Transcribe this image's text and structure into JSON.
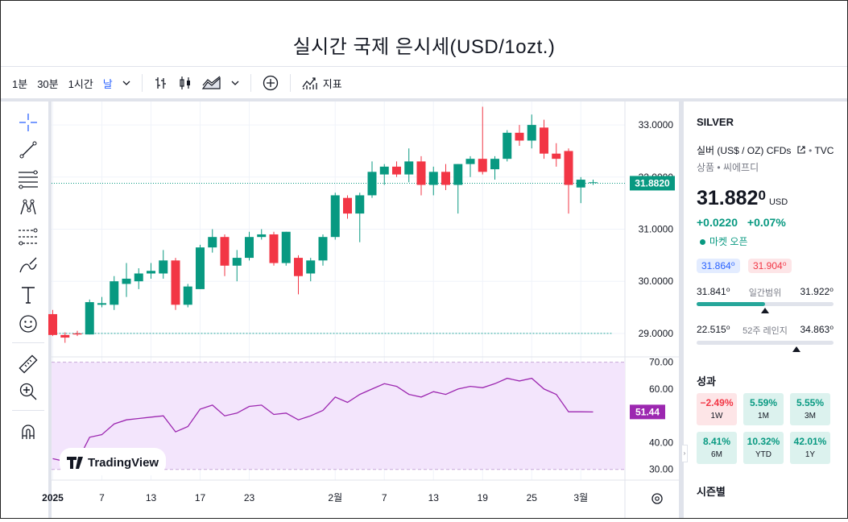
{
  "page": {
    "title": "실시간 국제 은시세(USD/1ozt.)"
  },
  "toolbar": {
    "intervals": [
      "1분",
      "30분",
      "1시간",
      "날"
    ],
    "indicators_label": "지표"
  },
  "left_tools": [
    "crosshair-icon",
    "trend-line-icon",
    "fib-retracement-icon",
    "pattern-icon",
    "long-position-icon",
    "brush-icon",
    "text-icon",
    "emoji-icon",
    "ruler-icon",
    "zoom-in-icon",
    "magnet-icon"
  ],
  "panel": {
    "symbol": "SILVER",
    "description": "실버 (US$ / OZ) CFDs",
    "source": "TVC",
    "category": "상품 • 씨에프디",
    "price_main": "31.882",
    "price_frac": "0",
    "currency": "USD",
    "change": "+0.0220",
    "change_pct": "+0.07%",
    "market_status": "마켓 오픈",
    "bid": "31.864⁰",
    "ask": "31.904⁰",
    "day_low": "31.841⁰",
    "day_range_label": "일간범위",
    "day_high": "31.922⁰",
    "day_range_position": 0.5,
    "year_low": "22.515⁰",
    "year_range_label": "52주 레인지",
    "year_high": "34.863⁰",
    "year_range_position": 0.73,
    "performance_title": "성과",
    "performance": [
      {
        "value": "−2.49%",
        "period": "1W",
        "sign": "neg"
      },
      {
        "value": "5.59%",
        "period": "1M",
        "sign": "pos"
      },
      {
        "value": "5.55%",
        "period": "3M",
        "sign": "pos"
      },
      {
        "value": "8.41%",
        "period": "6M",
        "sign": "pos"
      },
      {
        "value": "10.32%",
        "period": "YTD",
        "sign": "pos"
      },
      {
        "value": "42.01%",
        "period": "1Y",
        "sign": "pos"
      }
    ],
    "seasonals_title": "시즌별"
  },
  "colors": {
    "up": "#089981",
    "down": "#f23645",
    "rsi": "#9c27b0",
    "rsi_band": "#f3e5fc",
    "accent": "#2962ff"
  },
  "watermark": "TradingView",
  "chart_data": {
    "type": "candlestick",
    "last_price_label": "31.8820",
    "last_price": 31.882,
    "baseline": 29.0,
    "ylim": [
      28.55,
      33.45
    ],
    "yticks": [
      {
        "v": 33,
        "label": "33.0000"
      },
      {
        "v": 32,
        "label": "32.0000"
      },
      {
        "v": 31,
        "label": "31.0000"
      },
      {
        "v": 30,
        "label": "30.0000"
      },
      {
        "v": 29,
        "label": "29.0000"
      }
    ],
    "xticks": [
      {
        "i": 0,
        "label": "2025"
      },
      {
        "i": 4,
        "label": "7"
      },
      {
        "i": 8,
        "label": "13"
      },
      {
        "i": 12,
        "label": "17"
      },
      {
        "i": 16,
        "label": "23"
      },
      {
        "i": 23,
        "label": "2월"
      },
      {
        "i": 27,
        "label": "7"
      },
      {
        "i": 31,
        "label": "13"
      },
      {
        "i": 35,
        "label": "19"
      },
      {
        "i": 39,
        "label": "25"
      },
      {
        "i": 43,
        "label": "3월"
      }
    ],
    "candles": [
      [
        29.37,
        29.45,
        28.95,
        28.97
      ],
      [
        28.97,
        29.02,
        28.82,
        28.92
      ],
      [
        29.0,
        29.05,
        28.95,
        28.98
      ],
      [
        28.98,
        29.65,
        28.98,
        29.6
      ],
      [
        29.55,
        29.7,
        29.5,
        29.58
      ],
      [
        29.55,
        30.1,
        29.45,
        30.0
      ],
      [
        29.95,
        30.35,
        29.7,
        30.05
      ],
      [
        30.0,
        30.25,
        29.85,
        30.15
      ],
      [
        30.15,
        30.35,
        30.05,
        30.2
      ],
      [
        30.15,
        30.6,
        30.05,
        30.4
      ],
      [
        30.4,
        30.45,
        29.45,
        29.55
      ],
      [
        29.55,
        29.95,
        29.5,
        29.9
      ],
      [
        29.85,
        30.7,
        29.85,
        30.65
      ],
      [
        30.65,
        31.0,
        30.55,
        30.85
      ],
      [
        30.85,
        30.9,
        30.1,
        30.3
      ],
      [
        30.3,
        30.6,
        30.0,
        30.45
      ],
      [
        30.45,
        30.95,
        30.4,
        30.85
      ],
      [
        30.85,
        31.0,
        30.8,
        30.9
      ],
      [
        30.9,
        30.95,
        30.3,
        30.35
      ],
      [
        30.35,
        30.95,
        30.3,
        30.95
      ],
      [
        30.45,
        30.5,
        29.75,
        30.1
      ],
      [
        30.15,
        30.45,
        30.0,
        30.4
      ],
      [
        30.4,
        30.9,
        30.3,
        30.85
      ],
      [
        30.85,
        31.7,
        30.8,
        31.65
      ],
      [
        31.6,
        31.65,
        31.2,
        31.3
      ],
      [
        31.3,
        31.7,
        30.75,
        31.65
      ],
      [
        31.65,
        32.3,
        31.6,
        32.1
      ],
      [
        32.05,
        32.25,
        31.85,
        32.2
      ],
      [
        32.2,
        32.3,
        32.0,
        32.05
      ],
      [
        32.05,
        32.55,
        31.9,
        32.3
      ],
      [
        32.3,
        32.4,
        31.65,
        31.85
      ],
      [
        31.85,
        32.2,
        31.65,
        32.1
      ],
      [
        32.1,
        32.25,
        31.75,
        31.85
      ],
      [
        31.85,
        32.25,
        31.3,
        32.25
      ],
      [
        32.25,
        32.4,
        32.0,
        32.35
      ],
      [
        32.35,
        33.35,
        32.05,
        32.1
      ],
      [
        32.15,
        32.4,
        31.95,
        32.35
      ],
      [
        32.35,
        32.9,
        32.3,
        32.85
      ],
      [
        32.85,
        33.0,
        32.6,
        32.7
      ],
      [
        32.7,
        33.2,
        32.55,
        33.0
      ],
      [
        32.95,
        33.1,
        32.35,
        32.45
      ],
      [
        32.45,
        32.65,
        32.2,
        32.35
      ],
      [
        32.5,
        32.55,
        31.3,
        31.85
      ],
      [
        31.8,
        32.0,
        31.5,
        31.95
      ],
      [
        31.9,
        31.95,
        31.85,
        31.9
      ]
    ],
    "rsi": {
      "upper": 70,
      "lower": 30,
      "ylim": [
        26,
        72
      ],
      "last_label": "51.44",
      "yticks": [
        {
          "v": 70,
          "label": "70.00"
        },
        {
          "v": 60,
          "label": "60.00"
        },
        {
          "v": 40,
          "label": "40.00"
        },
        {
          "v": 30,
          "label": "30.00"
        }
      ],
      "values": [
        34,
        33,
        33,
        42,
        43,
        47,
        48.5,
        49,
        49.5,
        50,
        44,
        46,
        52.5,
        54,
        50,
        51,
        53.5,
        54,
        50.5,
        51,
        48.5,
        50,
        52,
        57,
        55,
        58,
        60,
        62,
        61,
        58,
        57,
        59,
        58,
        60,
        61,
        60.5,
        62,
        64,
        63,
        64,
        60,
        58,
        51.5,
        51.5,
        51.44
      ]
    }
  }
}
